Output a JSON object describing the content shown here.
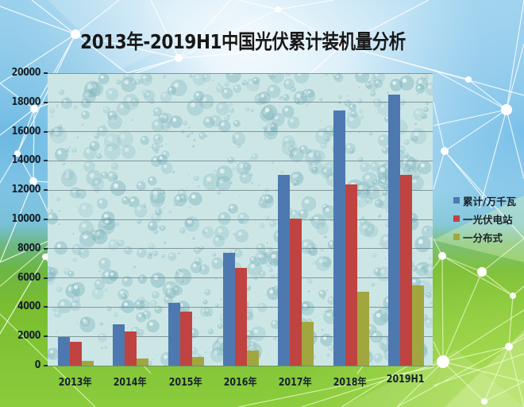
{
  "title": "2013年-2019H1中国光伏累计装机量分析",
  "colors": {
    "title": "#181818",
    "axis_label": "#16222d",
    "gridline": "#6e828c",
    "bar_blue": "#4d79b0",
    "bar_red": "#bf4340",
    "bar_olive": "#a2a63f"
  },
  "chart_data": {
    "type": "bar",
    "title": "2013年-2019H1中国光伏累计装机量分析",
    "categories": [
      "2013年",
      "2014年",
      "2015年",
      "2016年",
      "2017年",
      "2018年",
      "2019H1"
    ],
    "series": [
      {
        "name": "累计/万千瓦",
        "color": "#4d79b0",
        "values": [
          1942,
          2805,
          4318,
          7742,
          13025,
          17446,
          18559
        ]
      },
      {
        "name": "一光伏电站",
        "color": "#bf4340",
        "values": [
          1632,
          2338,
          3712,
          6710,
          10059,
          12384,
          13058
        ]
      },
      {
        "name": "一分布式",
        "color": "#a2a63f",
        "values": [
          310,
          467,
          606,
          1032,
          2966,
          5061,
          5502
        ]
      }
    ],
    "ylim": [
      0,
      20000
    ],
    "ytick_step": 2000,
    "grid": true,
    "legend_position": "right"
  }
}
